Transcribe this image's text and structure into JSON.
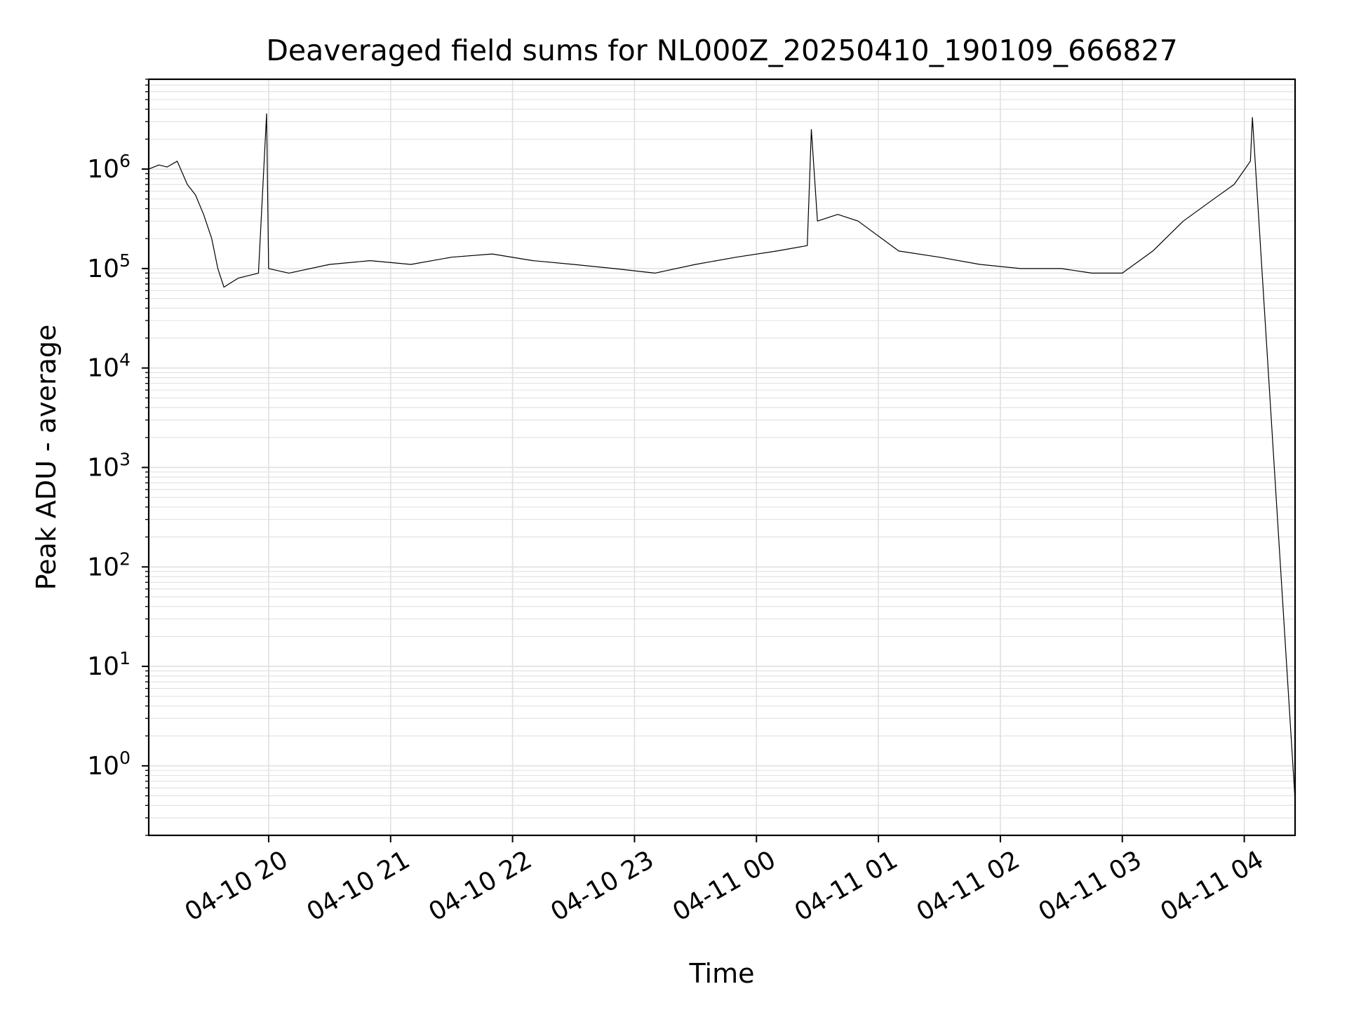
{
  "chart_data": {
    "type": "line",
    "title": "Deaveraged field sums for NL000Z_20250410_190109_666827",
    "xlabel": "Time",
    "ylabel": "Peak ADU - average",
    "y_scale": "log",
    "ylim": [
      0.2,
      8000000
    ],
    "xlim": [
      "2025-04-10 19:01",
      "2025-04-11 04:25"
    ],
    "grid": true,
    "legend": "none",
    "line_color": "#000000",
    "grid_color": "#e0e0e0",
    "x_tick_labels": [
      "04-10 20",
      "04-10 21",
      "04-10 22",
      "04-10 23",
      "04-11 00",
      "04-11 01",
      "04-11 02",
      "04-11 03",
      "04-11 04"
    ],
    "x_ticks": [
      "2025-04-10 20:00",
      "2025-04-10 21:00",
      "2025-04-10 22:00",
      "2025-04-10 23:00",
      "2025-04-11 00:00",
      "2025-04-11 01:00",
      "2025-04-11 02:00",
      "2025-04-11 03:00",
      "2025-04-11 04:00"
    ],
    "y_ticks": [
      {
        "base": "10",
        "exp": "0",
        "value": 1
      },
      {
        "base": "10",
        "exp": "1",
        "value": 10
      },
      {
        "base": "10",
        "exp": "2",
        "value": 100
      },
      {
        "base": "10",
        "exp": "3",
        "value": 1000
      },
      {
        "base": "10",
        "exp": "4",
        "value": 10000
      },
      {
        "base": "10",
        "exp": "5",
        "value": 100000
      },
      {
        "base": "10",
        "exp": "6",
        "value": 1000000
      }
    ],
    "series": [
      {
        "x": [
          "2025-04-10 19:01",
          "2025-04-10 19:06",
          "2025-04-10 19:10",
          "2025-04-10 19:15",
          "2025-04-10 19:20",
          "2025-04-10 19:24",
          "2025-04-10 19:28",
          "2025-04-10 19:32",
          "2025-04-10 19:35",
          "2025-04-10 19:38",
          "2025-04-10 19:45",
          "2025-04-10 19:55",
          "2025-04-10 19:59",
          "2025-04-10 20:00",
          "2025-04-10 20:10",
          "2025-04-10 20:30",
          "2025-04-10 20:50",
          "2025-04-10 21:10",
          "2025-04-10 21:30",
          "2025-04-10 21:50",
          "2025-04-10 22:10",
          "2025-04-10 22:30",
          "2025-04-10 22:50",
          "2025-04-10 23:10",
          "2025-04-10 23:30",
          "2025-04-10 23:50",
          "2025-04-11 00:10",
          "2025-04-11 00:25",
          "2025-04-11 00:27",
          "2025-04-11 00:30",
          "2025-04-11 00:40",
          "2025-04-11 00:50",
          "2025-04-11 01:10",
          "2025-04-11 01:30",
          "2025-04-11 01:50",
          "2025-04-11 02:10",
          "2025-04-11 02:30",
          "2025-04-11 02:45",
          "2025-04-11 03:00",
          "2025-04-11 03:15",
          "2025-04-11 03:30",
          "2025-04-11 03:45",
          "2025-04-11 03:55",
          "2025-04-11 04:03",
          "2025-04-11 04:04",
          "2025-04-11 04:25"
        ],
        "y": [
          1000000,
          1100000,
          1050000,
          1200000,
          700000,
          550000,
          350000,
          200000,
          100000,
          65000,
          80000,
          90000,
          3600000,
          100000,
          90000,
          110000,
          120000,
          110000,
          130000,
          140000,
          120000,
          110000,
          100000,
          90000,
          110000,
          130000,
          150000,
          170000,
          2500000,
          300000,
          350000,
          300000,
          150000,
          130000,
          110000,
          100000,
          100000,
          90000,
          90000,
          150000,
          300000,
          500000,
          700000,
          1200000,
          3300000,
          0.45
        ]
      }
    ]
  }
}
